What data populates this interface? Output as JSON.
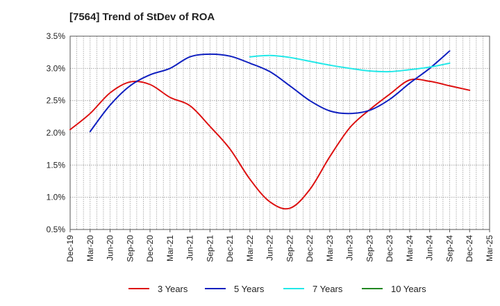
{
  "chart_data": {
    "type": "line",
    "title": "[7564]  Trend of StDev of ROA",
    "xlabel": "",
    "ylabel": "",
    "x_ticks": [
      "Dec-19",
      "Mar-20",
      "Jun-20",
      "Sep-20",
      "Dec-20",
      "Mar-21",
      "Jun-21",
      "Sep-21",
      "Dec-21",
      "Mar-22",
      "Jun-22",
      "Sep-22",
      "Dec-22",
      "Mar-23",
      "Jun-23",
      "Sep-23",
      "Dec-23",
      "Mar-24",
      "Jun-24",
      "Sep-24",
      "Dec-24",
      "Mar-25"
    ],
    "y_ticks": [
      "0.5%",
      "1.0%",
      "1.5%",
      "2.0%",
      "2.5%",
      "3.0%",
      "3.5%"
    ],
    "ylim": [
      0.5,
      3.5
    ],
    "grid": true,
    "legend_position": "bottom",
    "series": [
      {
        "name": "3 Years",
        "color": "#dd1111",
        "start_index": 0,
        "values": [
          2.05,
          2.3,
          2.62,
          2.79,
          2.75,
          2.55,
          2.42,
          2.1,
          1.75,
          1.28,
          0.93,
          0.83,
          1.12,
          1.63,
          2.08,
          2.36,
          2.6,
          2.82,
          2.8,
          2.73,
          2.66
        ]
      },
      {
        "name": "5 Years",
        "color": "#1020c0",
        "start_index": 1,
        "values": [
          2.02,
          2.43,
          2.73,
          2.9,
          3.0,
          3.18,
          3.22,
          3.19,
          3.08,
          2.95,
          2.73,
          2.5,
          2.34,
          2.3,
          2.35,
          2.52,
          2.77,
          3.0,
          3.27
        ]
      },
      {
        "name": "7 Years",
        "color": "#22e8e8",
        "start_index": 9,
        "values": [
          3.18,
          3.2,
          3.17,
          3.11,
          3.05,
          3.0,
          2.96,
          2.95,
          2.98,
          3.02,
          3.08
        ]
      },
      {
        "name": "10 Years",
        "color": "#228822",
        "start_index": 0,
        "values": []
      }
    ]
  }
}
